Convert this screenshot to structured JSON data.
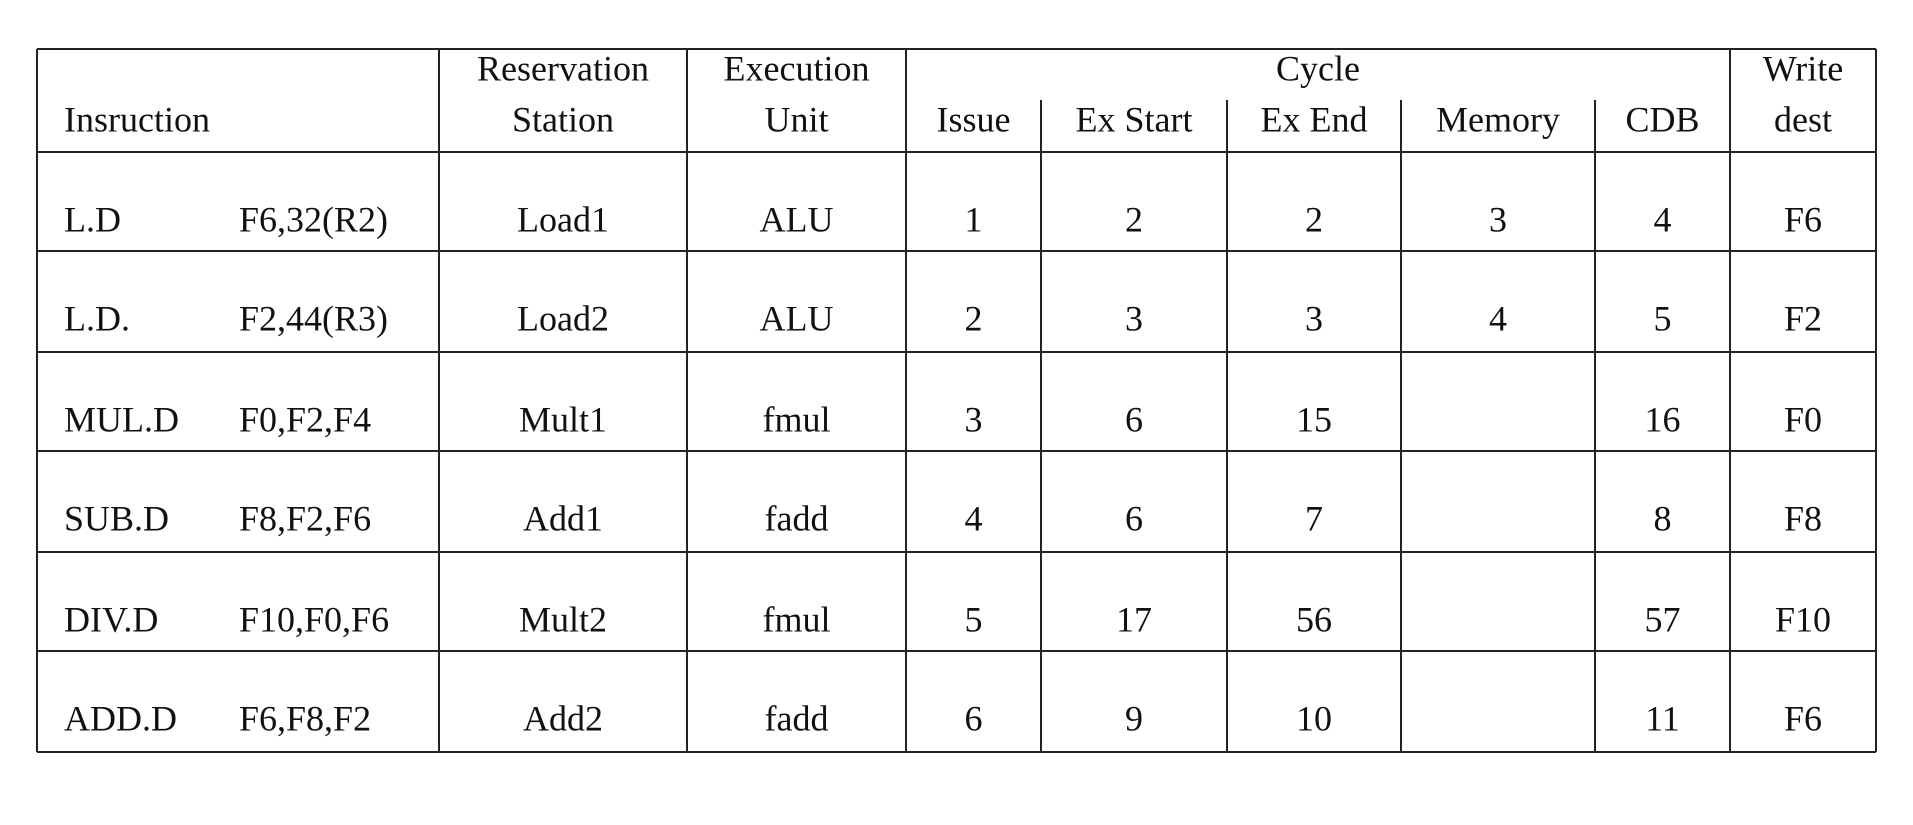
{
  "table": {
    "headers": {
      "instruction": "Insruction",
      "station": [
        "Reservation",
        "Station"
      ],
      "unit": [
        "Execution",
        "Unit"
      ],
      "cycle": "Cycle",
      "sub": [
        "Issue",
        "Ex Start",
        "Ex End",
        "Memory",
        "CDB"
      ],
      "write": [
        "Write",
        "dest"
      ]
    },
    "rows": [
      [
        "L.D",
        "F6,32(R2)",
        "Load1",
        "ALU",
        1,
        2,
        2,
        3,
        4,
        "F6"
      ],
      [
        "L.D.",
        "F2,44(R3)",
        "Load2",
        "ALU",
        2,
        3,
        3,
        4,
        5,
        "F2"
      ],
      [
        "MUL.D",
        "F0,F2,F4",
        "Mult1",
        "fmul",
        3,
        6,
        15,
        null,
        16,
        "F0"
      ],
      [
        "SUB.D",
        "F8,F2,F6",
        "Add1",
        "fadd",
        4,
        6,
        7,
        null,
        8,
        "F8"
      ],
      [
        "DIV.D",
        "F10,F0,F6",
        "Mult2",
        "fmul",
        5,
        17,
        56,
        null,
        57,
        "F10"
      ],
      [
        "ADD.D",
        "F6,F8,F2",
        "Add2",
        "fadd",
        6,
        9,
        10,
        null,
        11,
        "F6"
      ]
    ]
  }
}
